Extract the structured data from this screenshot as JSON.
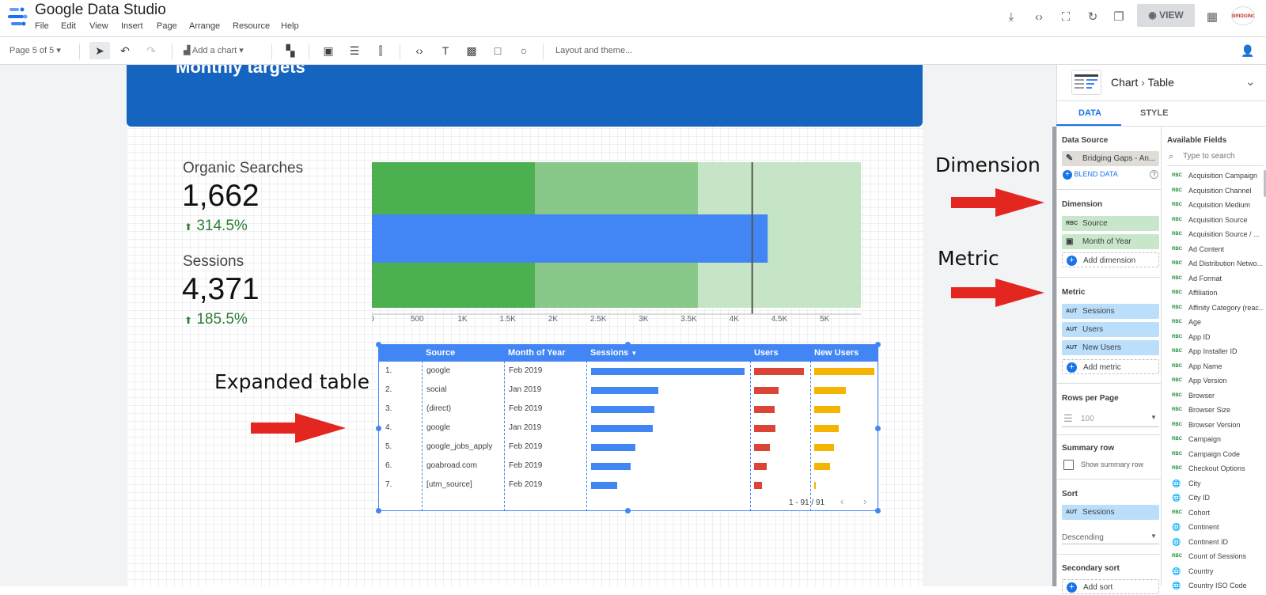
{
  "header": {
    "title": "Google Data Studio",
    "menu": [
      "File",
      "Edit",
      "View",
      "Insert",
      "Page",
      "Arrange",
      "Resource",
      "Help"
    ],
    "view_label": "VIEW",
    "avatar_text": "BRIDGING GAPS"
  },
  "toolbar": {
    "page_indicator": "Page 5 of 5",
    "add_chart": "Add a chart",
    "layout_theme": "Layout and theme..."
  },
  "banner": {
    "title": "Monthly targets"
  },
  "scorecards": [
    {
      "label": "Organic Searches",
      "value": "1,662",
      "delta": "314.5%"
    },
    {
      "label": "Sessions",
      "value": "4,371",
      "delta": "185.5%"
    }
  ],
  "bullet_chart": {
    "ticks": [
      "0",
      "500",
      "1K",
      "1.5K",
      "2K",
      "2.5K",
      "3K",
      "3.5K",
      "4K",
      "4.5K",
      "5K"
    ],
    "range_bands": [
      1800,
      3600,
      5400
    ],
    "actual": 4371,
    "target": 4200,
    "axis_max": 5400,
    "colors": {
      "band1": "#4caf50",
      "band2": "#88c98a",
      "band3": "#c5e5c6",
      "bar": "#4285f4"
    }
  },
  "annotations": {
    "dimension": "Dimension",
    "metric": "Metric",
    "expanded_table": "Expanded table"
  },
  "table": {
    "columns": [
      "Source",
      "Month of Year",
      "Sessions",
      "Users",
      "New Users"
    ],
    "rows": [
      {
        "n": "1.",
        "source": "google",
        "month": "Feb 2019",
        "sessions": 1,
        "users": 1,
        "new_users": 1
      },
      {
        "n": "2.",
        "source": "social",
        "month": "Jan 2019",
        "sessions": 0.44,
        "users": 0.49,
        "new_users": 0.53
      },
      {
        "n": "3.",
        "source": "(direct)",
        "month": "Feb 2019",
        "sessions": 0.41,
        "users": 0.41,
        "new_users": 0.44
      },
      {
        "n": "4.",
        "source": "google",
        "month": "Jan 2019",
        "sessions": 0.4,
        "users": 0.43,
        "new_users": 0.41
      },
      {
        "n": "5.",
        "source": "google_jobs_apply",
        "month": "Feb 2019",
        "sessions": 0.29,
        "users": 0.31,
        "new_users": 0.33
      },
      {
        "n": "6.",
        "source": "goabroad.com",
        "month": "Feb 2019",
        "sessions": 0.26,
        "users": 0.25,
        "new_users": 0.26
      },
      {
        "n": "7.",
        "source": "[utm_source]",
        "month": "Feb 2019",
        "sessions": 0.17,
        "users": 0.16,
        "new_users": 0.03
      }
    ],
    "pagination": "1 - 91 / 91",
    "colors": {
      "sessions": "#4285f4",
      "users": "#db4437",
      "new_users": "#f4b400"
    }
  },
  "panel": {
    "breadcrumb_chart": "Chart",
    "breadcrumb_type": "Table",
    "tab_data": "DATA",
    "tab_style": "STYLE",
    "data_source_title": "Data Source",
    "data_source": "Bridging Gaps - An...",
    "blend": "BLEND DATA",
    "dimension_title": "Dimension",
    "dimensions": [
      {
        "type": "RBC",
        "name": "Source"
      },
      {
        "type": "cal",
        "name": "Month of Year"
      }
    ],
    "add_dimension": "Add dimension",
    "metric_title": "Metric",
    "metrics": [
      {
        "type": "AUT",
        "name": "Sessions"
      },
      {
        "type": "AUT",
        "name": "Users"
      },
      {
        "type": "AUT",
        "name": "New Users"
      }
    ],
    "add_metric": "Add metric",
    "rows_title": "Rows per Page",
    "rows_value": "100",
    "summary_title": "Summary row",
    "summary_label": "Show summary row",
    "sort_title": "Sort",
    "sort_metric": "Sessions",
    "sort_order": "Descending",
    "secondary_sort_title": "Secondary sort",
    "add_sort": "Add sort",
    "available_title": "Available Fields",
    "search_placeholder": "Type to search",
    "fields": [
      {
        "t": "RBC",
        "n": "Acquisition Campaign"
      },
      {
        "t": "RBC",
        "n": "Acquisition Channel"
      },
      {
        "t": "RBC",
        "n": "Acquisition Medium"
      },
      {
        "t": "RBC",
        "n": "Acquisition Source"
      },
      {
        "t": "RBC",
        "n": "Acquisition Source / ..."
      },
      {
        "t": "RBC",
        "n": "Ad Content"
      },
      {
        "t": "RBC",
        "n": "Ad Distribution Netwo..."
      },
      {
        "t": "RBC",
        "n": "Ad Format"
      },
      {
        "t": "RBC",
        "n": "Affiliation"
      },
      {
        "t": "RBC",
        "n": "Affinity Category (reac..."
      },
      {
        "t": "RBC",
        "n": "Age"
      },
      {
        "t": "RBC",
        "n": "App ID"
      },
      {
        "t": "RBC",
        "n": "App Installer ID"
      },
      {
        "t": "RBC",
        "n": "App Name"
      },
      {
        "t": "RBC",
        "n": "App Version"
      },
      {
        "t": "RBC",
        "n": "Browser"
      },
      {
        "t": "RBC",
        "n": "Browser Size"
      },
      {
        "t": "RBC",
        "n": "Browser Version"
      },
      {
        "t": "RBC",
        "n": "Campaign"
      },
      {
        "t": "RBC",
        "n": "Campaign Code"
      },
      {
        "t": "RBC",
        "n": "Checkout Options"
      },
      {
        "t": "geo",
        "n": "City"
      },
      {
        "t": "geo",
        "n": "City ID"
      },
      {
        "t": "RBC",
        "n": "Cohort"
      },
      {
        "t": "geo",
        "n": "Continent"
      },
      {
        "t": "geo",
        "n": "Continent ID"
      },
      {
        "t": "RBC",
        "n": "Count of Sessions"
      },
      {
        "t": "geo",
        "n": "Country"
      },
      {
        "t": "geo",
        "n": "Country ISO Code"
      }
    ]
  }
}
